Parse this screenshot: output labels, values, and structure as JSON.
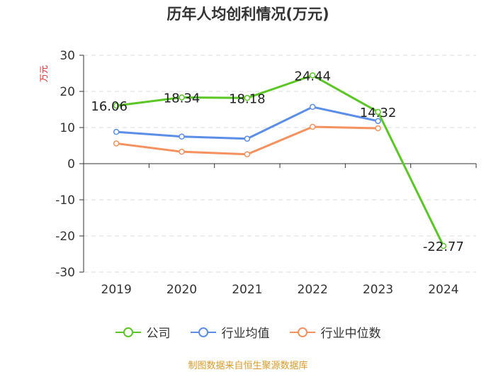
{
  "chart_data": {
    "type": "line",
    "title": "历年人均创利情况(万元)",
    "ylabel": "万元",
    "xlabel": "",
    "categories": [
      "2019",
      "2020",
      "2021",
      "2022",
      "2023",
      "2024"
    ],
    "ylim": [
      -30,
      30
    ],
    "yticks": [
      30,
      20,
      10,
      0,
      -10,
      -20,
      -30
    ],
    "ytick_labels": [
      "30",
      "20",
      "10",
      "0",
      "-10",
      "-20",
      "-30"
    ],
    "grid": true,
    "legend_position": "bottom",
    "series": [
      {
        "name": "公司",
        "color": "#5ac725",
        "values": [
          16.06,
          18.34,
          18.18,
          24.44,
          14.32,
          -22.77
        ],
        "labels": [
          "16.06",
          "18.34",
          "18.18",
          "24.44",
          "14.32",
          "-22.77"
        ]
      },
      {
        "name": "行业均值",
        "color": "#5b8ee6",
        "values": [
          8.8,
          7.5,
          6.9,
          15.7,
          11.8,
          null
        ]
      },
      {
        "name": "行业中位数",
        "color": "#f5915e",
        "values": [
          5.6,
          3.3,
          2.6,
          10.2,
          9.8,
          null
        ]
      }
    ]
  },
  "source_text": "制图数据来自恒生聚源数据库"
}
